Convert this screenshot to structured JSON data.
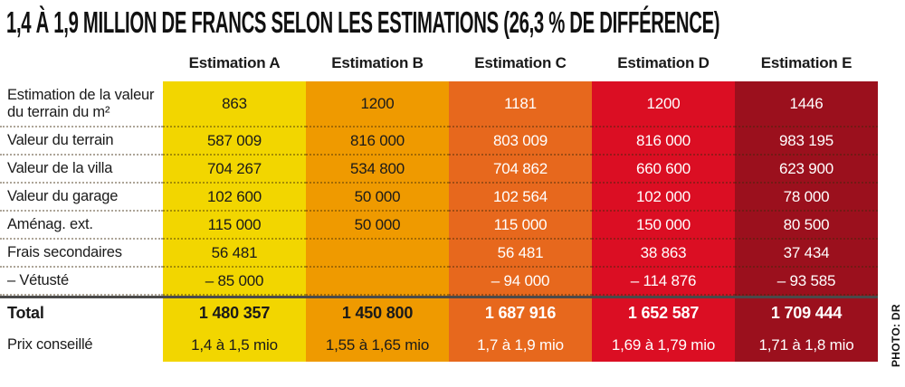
{
  "chart_data": {
    "type": "table",
    "title": "1,4 À 1,9 MILLION DE FRANCS SELON LES ESTIMATIONS (26,3 % DE DIFFÉRENCE)",
    "photo_credit": "PHOTO: DR",
    "columns": [
      {
        "label": "Estimation A",
        "color": "#F2D600",
        "text_color": "#1a1a1a"
      },
      {
        "label": "Estimation B",
        "color": "#EF9A00",
        "text_color": "#1a1a1a"
      },
      {
        "label": "Estimation C",
        "color": "#E7681D",
        "text_color": "#ffffff"
      },
      {
        "label": "Estimation D",
        "color": "#DB0E23",
        "text_color": "#ffffff"
      },
      {
        "label": "Estimation E",
        "color": "#9B101D",
        "text_color": "#ffffff"
      }
    ],
    "rows": [
      {
        "label": "Estimation de la valeur du terrain du m²",
        "values": [
          "863",
          "1200",
          "1181",
          "1200",
          "1446"
        ]
      },
      {
        "label": "Valeur du terrain",
        "values": [
          "587 009",
          "816 000",
          "803 009",
          "816 000",
          "983 195"
        ]
      },
      {
        "label": "Valeur de la villa",
        "values": [
          "704 267",
          "534 800",
          "704 862",
          "660 600",
          "623 900"
        ]
      },
      {
        "label": "Valeur du garage",
        "values": [
          "102 600",
          "50 000",
          "102 564",
          "102 000",
          "78 000"
        ]
      },
      {
        "label": "Aménag. ext.",
        "values": [
          "115 000",
          "50 000",
          "115 000",
          "150 000",
          "80 500"
        ]
      },
      {
        "label": "Frais secondaires",
        "values": [
          "56 481",
          "",
          "56 481",
          "38 863",
          "37 434"
        ]
      },
      {
        "label": "– Vétusté",
        "values": [
          "– 85 000",
          "",
          "– 94 000",
          "– 114 876",
          "– 93 585"
        ]
      },
      {
        "label": "Total",
        "values": [
          "1 480 357",
          "1 450 800",
          "1 687 916",
          "1 652 587",
          "1 709 444"
        ]
      },
      {
        "label": "Prix conseillé",
        "values": [
          "1,4 à 1,5 mio",
          "1,55 à 1,65 mio",
          "1,7 à 1,9 mio",
          "1,69 à 1,79 mio",
          "1,71 à 1,8 mio"
        ]
      }
    ]
  }
}
